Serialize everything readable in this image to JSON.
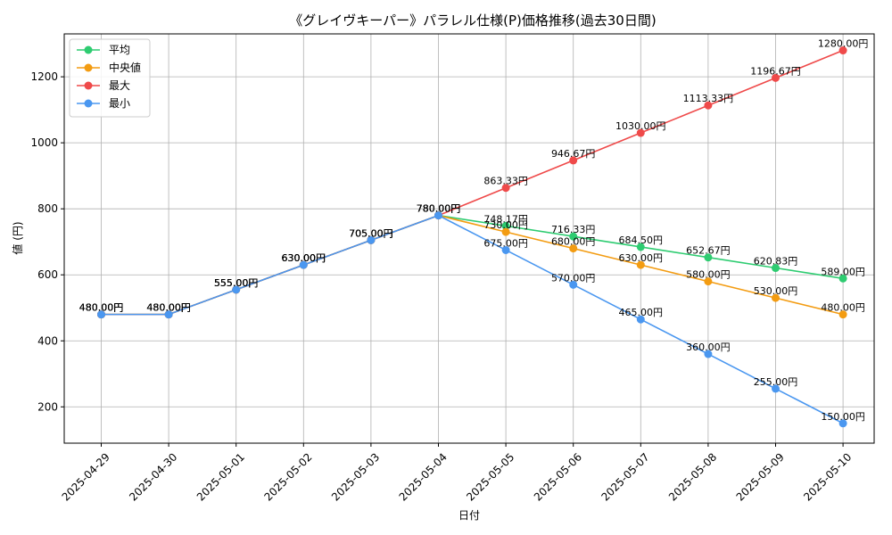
{
  "chart_data": {
    "type": "line",
    "title": "《グレイヴキーパー》パラレル仕様(P)価格推移(過去30日間)",
    "xlabel": "日付",
    "ylabel": "値 (円)",
    "x": [
      "2025-04-29",
      "2025-04-30",
      "2025-05-01",
      "2025-05-02",
      "2025-05-03",
      "2025-05-04",
      "2025-05-05",
      "2025-05-06",
      "2025-05-07",
      "2025-05-08",
      "2025-05-09",
      "2025-05-10"
    ],
    "ylim": [
      90,
      1330
    ],
    "yticks": [
      200,
      400,
      600,
      800,
      1000,
      1200
    ],
    "grid": true,
    "legend_position": "top-left",
    "series": [
      {
        "name": "平均",
        "color": "#2ecc71",
        "values": [
          480,
          480,
          555,
          630,
          705,
          780,
          748.17,
          716.33,
          684.5,
          652.67,
          620.83,
          589.0
        ],
        "labels": [
          "480.00円",
          "480.00円",
          "555.00円",
          "630.00円",
          "705.00円",
          "780.00円",
          "748.17円",
          "716.33円",
          "684.50円",
          "652.67円",
          "620.83円",
          "589.00円"
        ]
      },
      {
        "name": "中央値",
        "color": "#f39c12",
        "values": [
          480,
          480,
          555,
          630,
          705,
          780,
          730,
          680,
          630,
          580,
          530,
          480
        ],
        "labels": [
          "480.00円",
          "480.00円",
          "555.00円",
          "630.00円",
          "705.00円",
          "780.00円",
          "730.00円",
          "680.00円",
          "630.00円",
          "580.00円",
          "530.00円",
          "480.00円"
        ]
      },
      {
        "name": "最大",
        "color": "#ef4a4a",
        "values": [
          480,
          480,
          555,
          630,
          705,
          780,
          863.33,
          946.67,
          1030,
          1113.33,
          1196.67,
          1280
        ],
        "labels": [
          "480.00円",
          "480.00円",
          "555.00円",
          "630.00円",
          "705.00円",
          "780.00円",
          "863.33円",
          "946.67円",
          "1030.00円",
          "1113.33円",
          "1196.67円",
          "1280.00円"
        ]
      },
      {
        "name": "最小",
        "color": "#4a97f0",
        "values": [
          480,
          480,
          555,
          630,
          705,
          780,
          675,
          570,
          465,
          360,
          255,
          150
        ],
        "labels": [
          "480.00円",
          "480.00円",
          "555.00円",
          "630.00円",
          "705.00円",
          "780.00円",
          "675.00円",
          "570.00円",
          "465.00円",
          "360.00円",
          "255.00円",
          "150.00円"
        ]
      }
    ]
  }
}
